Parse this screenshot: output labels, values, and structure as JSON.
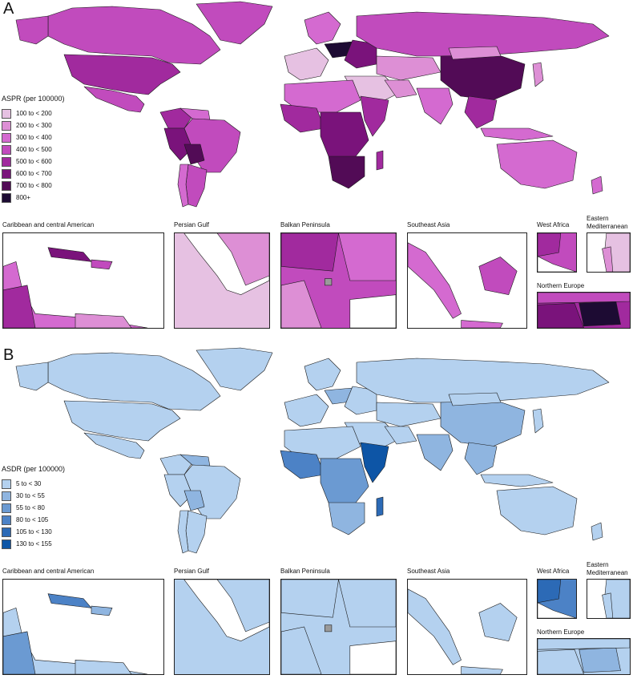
{
  "panels": [
    {
      "letter": "A",
      "legend": {
        "title": "ASPR (per 100000)",
        "items": [
          {
            "label": "100 to < 200",
            "color": "#e6c1e2"
          },
          {
            "label": "200 to < 300",
            "color": "#dd8fd5"
          },
          {
            "label": "300 to < 400",
            "color": "#d46ad0"
          },
          {
            "label": "400 to < 500",
            "color": "#c14bbd"
          },
          {
            "label": "500 to < 600",
            "color": "#a12a9e"
          },
          {
            "label": "600 to < 700",
            "color": "#7a137b"
          },
          {
            "label": "700 to < 800",
            "color": "#520b56"
          },
          {
            "label": "800+",
            "color": "#1d0b33"
          }
        ]
      },
      "insets": [
        {
          "title": "Caribbean and central American"
        },
        {
          "title": "Persian Gulf"
        },
        {
          "title": "Balkan Peninsula"
        },
        {
          "title": "Southeast Asia"
        },
        {
          "title": "West Africa"
        },
        {
          "title": "Eastern\nMediterranean"
        },
        {
          "title": "Northern Europe"
        }
      ]
    },
    {
      "letter": "B",
      "legend": {
        "title": "ASDR (per 100000)",
        "items": [
          {
            "label": "5 to < 30",
            "color": "#b4d1ef"
          },
          {
            "label": "30 to < 55",
            "color": "#8fb5e0"
          },
          {
            "label": "55 to < 80",
            "color": "#6b9ad2"
          },
          {
            "label": "80 to < 105",
            "color": "#4c82c6"
          },
          {
            "label": "105 to < 130",
            "color": "#2c6ab6"
          },
          {
            "label": "130 to < 155",
            "color": "#0d55a6"
          }
        ]
      },
      "insets": [
        {
          "title": "Caribbean and central American"
        },
        {
          "title": "Persian Gulf"
        },
        {
          "title": "Balkan Peninsula"
        },
        {
          "title": "Southeast Asia"
        },
        {
          "title": "West Africa"
        },
        {
          "title": "Eastern\nMediterranean"
        },
        {
          "title": "Northern Europe"
        }
      ]
    }
  ],
  "colors": {
    "no_data": "#9a9a9a",
    "ocean": "#ffffff",
    "border": "#1a1a1a"
  }
}
